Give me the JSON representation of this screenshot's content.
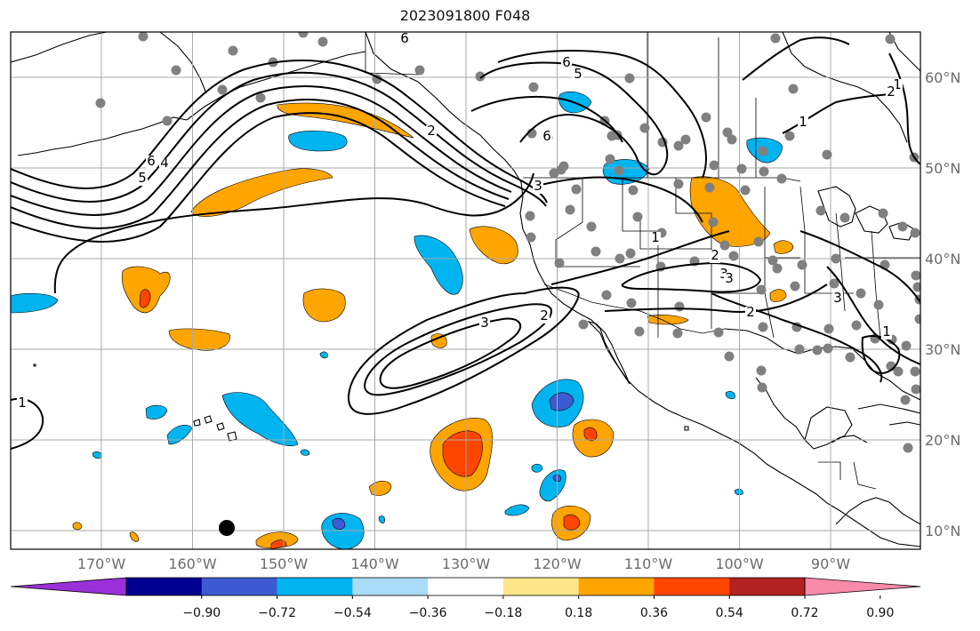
{
  "title": "2023091800 F048",
  "x_ticks": [
    "170°W",
    "160°W",
    "150°W",
    "140°W",
    "130°W",
    "120°W",
    "110°W",
    "100°W",
    "90°W"
  ],
  "y_ticks": [
    "60°N",
    "50°N",
    "40°N",
    "30°N",
    "20°N",
    "10°N"
  ],
  "colorbar": {
    "ticks": [
      "−0.90",
      "−0.72",
      "−0.54",
      "−0.36",
      "−0.18",
      "0.18",
      "0.36",
      "0.54",
      "0.72",
      "0.90"
    ],
    "colors": [
      "#9b30d9",
      "#000090",
      "#3c5bd2",
      "#00b4f0",
      "#aadcf7",
      "#ffffff",
      "#fde68a",
      "#ffa500",
      "#ff4500",
      "#b22222",
      "#f88aaa"
    ]
  },
  "contour_labels": [
    "6",
    "6",
    "5",
    "6",
    "6",
    "5",
    "4",
    "3",
    "2",
    "3",
    "2",
    "1",
    "1",
    "2",
    "3",
    "2",
    "3",
    "1",
    "1",
    "1",
    "2",
    "3"
  ],
  "colors": {
    "land_line": "#000000",
    "grid": "#aaaaaa",
    "station": "#808080",
    "marker": "#000000"
  }
}
